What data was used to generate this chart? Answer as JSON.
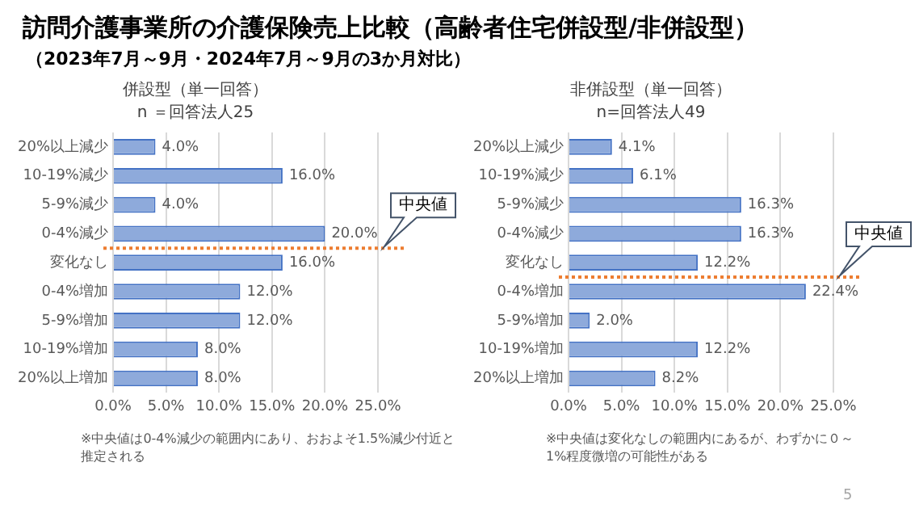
{
  "chart_data": [
    {
      "type": "bar",
      "orientation": "horizontal",
      "title": "併設型（単一回答）",
      "subtitle": "n ＝回答法人25",
      "annotations": [
        "訪問介護事業所の介護保険売上比較（高齢者住宅併設型/非併設型）",
        "（2023年7月～9月・2024年7月～9月の3か月対比）",
        "※中央値は0-4%減少の範囲内にあり、おおよそ1.5%減少付近と推定される"
      ],
      "categories": [
        "20%以上減少",
        "10-19%減少",
        "5-9%減少",
        "0-4%減少",
        "変化なし",
        "0-4%増加",
        "5-9%増加",
        "10-19%増加",
        "20%以上増加"
      ],
      "ref_lines": [
        {
          "axis": "y",
          "value": "0-4%減少",
          "label": "中央値",
          "color": "#ed7d31",
          "line_style": "dotted"
        }
      ],
      "values": [
        4.0,
        16.0,
        4.0,
        20.0,
        16.0,
        12.0,
        12.0,
        8.0,
        8.0
      ],
      "value_labels": [
        "4.0%",
        "16.0%",
        "4.0%",
        "20.0%",
        "16.0%",
        "12.0%",
        "12.0%",
        "8.0%",
        "8.0%"
      ],
      "color": "#8eaadb",
      "xlim": [
        0,
        25
      ],
      "xticks": [
        {
          "value": 0,
          "label": "0.0%"
        },
        {
          "value": 5,
          "label": "5.0%"
        },
        {
          "value": 10,
          "label": "10.0%"
        },
        {
          "value": 15,
          "label": "15.0%"
        },
        {
          "value": 20,
          "label": "20.0%"
        },
        {
          "value": 25,
          "label": "25.0%"
        }
      ],
      "grid": "x"
    },
    {
      "type": "bar",
      "orientation": "horizontal",
      "title": "非併設型（単一回答）",
      "subtitle": "n=回答法人49",
      "annotations": [
        "※中央値は変化なしの範囲内にあるが、わずかに０～1%程度微増の可能性がある",
        "5"
      ],
      "categories": [
        "20%以上減少",
        "10-19%減少",
        "5-9%減少",
        "0-4%減少",
        "変化なし",
        "0-4%増加",
        "5-9%増加",
        "10-19%増加",
        "20%以上増加"
      ],
      "ref_lines": [
        {
          "axis": "y",
          "value": "変化なし",
          "label": "中央値",
          "color": "#ed7d31",
          "line_style": "dotted"
        }
      ],
      "values": [
        4.1,
        6.1,
        16.3,
        16.3,
        12.2,
        22.4,
        2.0,
        12.2,
        8.2
      ],
      "value_labels": [
        "4.1%",
        "6.1%",
        "16.3%",
        "16.3%",
        "12.2%",
        "22.4%",
        "2.0%",
        "12.2%",
        "8.2%"
      ],
      "color": "#8eaadb",
      "xlim": [
        0,
        25
      ],
      "xticks": [
        {
          "value": 0,
          "label": "0.0%"
        },
        {
          "value": 5,
          "label": "5.0%"
        },
        {
          "value": 10,
          "label": "10.0%"
        },
        {
          "value": 15,
          "label": "15.0%"
        },
        {
          "value": 20,
          "label": "20.0%"
        },
        {
          "value": 25,
          "label": "25.0%"
        }
      ],
      "grid": "x"
    }
  ]
}
